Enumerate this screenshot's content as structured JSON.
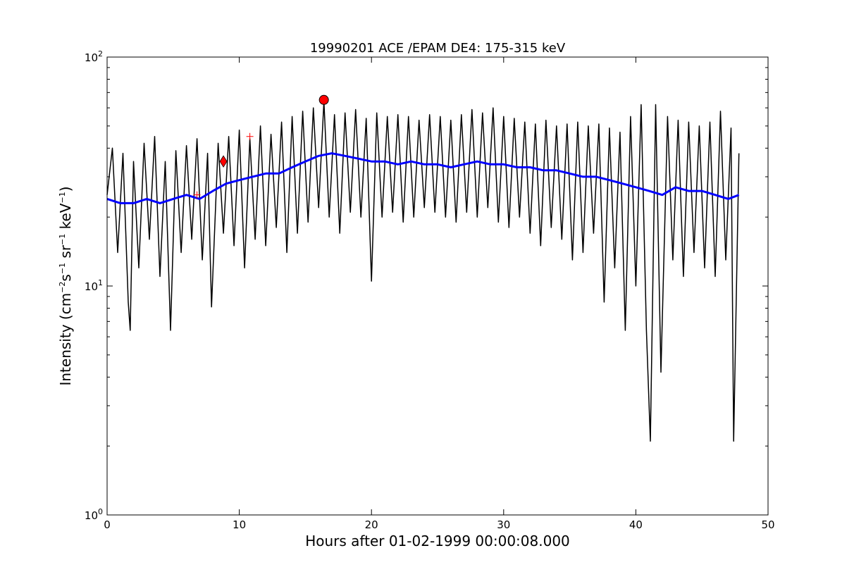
{
  "chart_data": {
    "type": "line",
    "title": "19990201 ACE /EPAM DE4: 175-315 keV",
    "xlabel": "Hours after 01-02-1999 00:00:08.000",
    "ylabel": {
      "prefix": "Intensity (cm",
      "sup1": "−2",
      "mid1": "s",
      "sup2": "−1",
      "mid2": " sr",
      "sup3": "−1",
      "mid3": " keV",
      "sup4": "−1",
      "suffix": ")"
    },
    "xlim": [
      0,
      50
    ],
    "ylim": [
      1,
      100
    ],
    "yscale": "log",
    "grid": false,
    "x_ticks": [
      {
        "value": 0,
        "label": "0"
      },
      {
        "value": 10,
        "label": "10"
      },
      {
        "value": 20,
        "label": "20"
      },
      {
        "value": 30,
        "label": "30"
      },
      {
        "value": 40,
        "label": "40"
      },
      {
        "value": 50,
        "label": "50"
      }
    ],
    "y_ticks": [
      {
        "value": 1,
        "base": "10",
        "exp": "0"
      },
      {
        "value": 10,
        "base": "10",
        "exp": "1"
      },
      {
        "value": 100,
        "base": "10",
        "exp": "2"
      }
    ],
    "series": [
      {
        "kind": "raw",
        "color": "#000000",
        "x": [
          0.0,
          0.4,
          0.8,
          1.2,
          1.6,
          1.75,
          2.0,
          2.4,
          2.8,
          3.2,
          3.6,
          4.0,
          4.4,
          4.8,
          5.2,
          5.6,
          6.0,
          6.4,
          6.8,
          7.2,
          7.6,
          7.9,
          8.4,
          8.8,
          9.2,
          9.6,
          10.0,
          10.4,
          10.8,
          11.2,
          11.6,
          12.0,
          12.4,
          12.8,
          13.2,
          13.6,
          14.0,
          14.4,
          14.8,
          15.2,
          15.6,
          16.0,
          16.4,
          16.8,
          17.2,
          17.6,
          18.0,
          18.4,
          18.8,
          19.2,
          19.6,
          20.0,
          20.4,
          20.8,
          21.2,
          21.6,
          22.0,
          22.4,
          22.8,
          23.2,
          23.6,
          24.0,
          24.4,
          24.8,
          25.2,
          25.6,
          26.0,
          26.4,
          26.8,
          27.2,
          27.6,
          28.0,
          28.4,
          28.8,
          29.2,
          29.6,
          30.0,
          30.4,
          30.8,
          31.2,
          31.6,
          32.0,
          32.4,
          32.8,
          33.2,
          33.6,
          34.0,
          34.4,
          34.8,
          35.2,
          35.6,
          36.0,
          36.4,
          36.8,
          37.2,
          37.6,
          38.0,
          38.4,
          38.8,
          39.2,
          39.6,
          40.0,
          40.4,
          40.8,
          41.1,
          41.5,
          41.9,
          42.4,
          42.8,
          43.2,
          43.6,
          44.0,
          44.4,
          44.8,
          45.2,
          45.6,
          46.0,
          46.4,
          46.8,
          47.2,
          47.4,
          47.8
        ],
        "y": [
          25,
          40,
          14,
          38,
          8.5,
          6.4,
          35,
          12,
          42,
          16,
          45,
          11,
          35,
          6.4,
          39,
          14,
          41,
          16,
          44,
          13,
          38,
          8.1,
          42,
          17,
          45,
          15,
          48,
          12,
          44,
          16,
          50,
          15,
          46,
          18,
          52,
          14,
          55,
          17,
          58,
          19,
          60,
          22,
          64,
          20,
          56,
          17,
          57,
          21,
          59,
          20,
          54,
          10.5,
          57,
          20,
          55,
          21,
          56,
          19,
          55,
          20,
          53,
          22,
          56,
          21,
          55,
          20,
          53,
          19,
          56,
          21,
          59,
          20,
          57,
          22,
          60,
          19,
          55,
          18,
          54,
          20,
          52,
          17,
          51,
          15,
          53,
          18,
          50,
          16,
          51,
          13,
          52,
          14,
          50,
          17,
          51,
          8.5,
          49,
          12,
          47,
          6.4,
          55,
          10,
          62,
          6.4,
          2.1,
          62,
          4.2,
          55,
          13,
          53,
          11,
          52,
          14,
          50,
          12,
          52,
          11,
          58,
          13,
          49,
          2.1,
          38
        ]
      },
      {
        "kind": "smoothed",
        "color": "#0000ff",
        "x": [
          0,
          1,
          2,
          3,
          4,
          5,
          6,
          7,
          8,
          9,
          10,
          11,
          12,
          13,
          14,
          15,
          16,
          17,
          18,
          19,
          20,
          21,
          22,
          23,
          24,
          25,
          26,
          27,
          28,
          29,
          30,
          31,
          32,
          33,
          34,
          35,
          36,
          37,
          38,
          39,
          40,
          41,
          42,
          43,
          44,
          45,
          46,
          47,
          47.8
        ],
        "y": [
          24,
          23,
          23,
          24,
          23,
          24,
          25,
          24,
          26,
          28,
          29,
          30,
          31,
          31,
          33,
          35,
          37,
          38,
          37,
          36,
          35,
          35,
          34,
          35,
          34,
          34,
          33,
          34,
          35,
          34,
          34,
          33,
          33,
          32,
          32,
          31,
          30,
          30,
          29,
          28,
          27,
          26,
          25,
          27,
          26,
          26,
          25,
          24,
          25
        ]
      }
    ],
    "markers": [
      {
        "shape": "circle",
        "color": "#ff0000",
        "x": 16.4,
        "y": 65
      },
      {
        "shape": "diamond",
        "color": "#ff0000",
        "x": 8.8,
        "y": 35
      },
      {
        "shape": "plus",
        "color": "#ff0000",
        "x": 6.8,
        "y": 25
      },
      {
        "shape": "plus",
        "color": "#ff0000",
        "x": 10.8,
        "y": 45
      }
    ]
  }
}
